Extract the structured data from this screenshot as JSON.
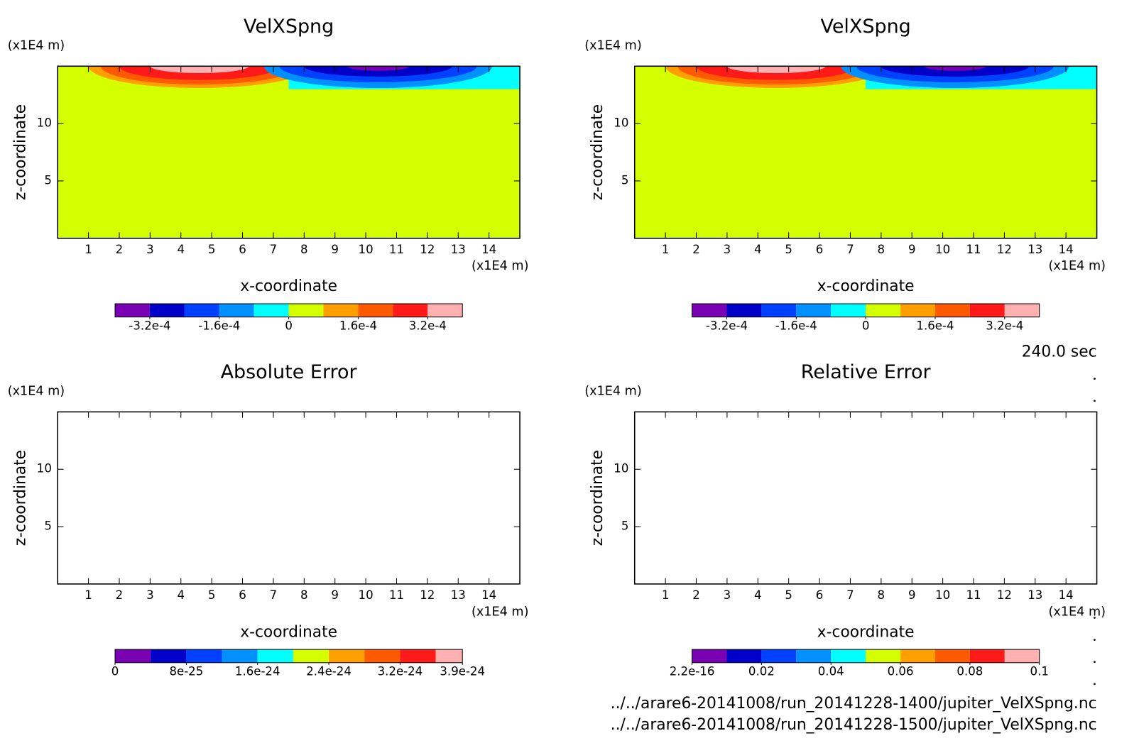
{
  "chart_data": [
    {
      "type": "contour",
      "title": "VelXSpng",
      "x_label": "x-coordinate",
      "y_label": "z-coordinate",
      "x_unit": "(x1E4 m)",
      "y_unit": "(x1E4 m)",
      "xlim": [
        0,
        15
      ],
      "ylim": [
        0,
        15
      ],
      "xticks": [
        1,
        2,
        3,
        4,
        5,
        6,
        7,
        8,
        9,
        10,
        11,
        12,
        13,
        14
      ],
      "yticks": [
        5,
        10
      ],
      "colorbar": {
        "colors": [
          "#7a00b4",
          "#0000c8",
          "#0040ff",
          "#0090ff",
          "#00ffff",
          "#d4ff00",
          "#ffa000",
          "#ff5a00",
          "#ff1a1a",
          "#ffb0b0"
        ],
        "levels": [
          -0.0004,
          -0.00032,
          -0.00024,
          -0.00016,
          -8e-05,
          0,
          8e-05,
          0.00016,
          0.00024,
          0.00032,
          0.0004
        ],
        "ticks": [
          {
            "value": -0.00032,
            "label": "-3.2e-4"
          },
          {
            "value": -0.00016,
            "label": "-1.6e-4"
          },
          0,
          {
            "value": 0.00016,
            "label": "1.6e-4"
          },
          {
            "value": 0.00032,
            "label": "3.2e-4"
          }
        ]
      }
    },
    {
      "type": "contour",
      "title": "VelXSpng",
      "x_label": "x-coordinate",
      "y_label": "z-coordinate",
      "x_unit": "(x1E4 m)",
      "y_unit": "(x1E4 m)",
      "xlim": [
        0,
        15
      ],
      "ylim": [
        0,
        15
      ],
      "xticks": [
        1,
        2,
        3,
        4,
        5,
        6,
        7,
        8,
        9,
        10,
        11,
        12,
        13,
        14
      ],
      "yticks": [
        5,
        10
      ],
      "colorbar": {
        "colors": [
          "#7a00b4",
          "#0000c8",
          "#0040ff",
          "#0090ff",
          "#00ffff",
          "#d4ff00",
          "#ffa000",
          "#ff5a00",
          "#ff1a1a",
          "#ffb0b0"
        ],
        "levels": [
          -0.0004,
          -0.00032,
          -0.00024,
          -0.00016,
          -8e-05,
          0,
          8e-05,
          0.00016,
          0.00024,
          0.00032,
          0.0004
        ],
        "ticks": [
          {
            "value": -0.00032,
            "label": "-3.2e-4"
          },
          {
            "value": -0.00016,
            "label": "-1.6e-4"
          },
          0,
          {
            "value": 0.00016,
            "label": "1.6e-4"
          },
          {
            "value": 0.00032,
            "label": "3.2e-4"
          }
        ]
      }
    },
    {
      "type": "contour",
      "title": "Absolute Error",
      "x_label": "x-coordinate",
      "y_label": "z-coordinate",
      "x_unit": "(x1E4 m)",
      "y_unit": "(x1E4 m)",
      "xlim": [
        0,
        15
      ],
      "ylim": [
        0,
        15
      ],
      "xticks": [
        1,
        2,
        3,
        4,
        5,
        6,
        7,
        8,
        9,
        10,
        11,
        12,
        13,
        14
      ],
      "yticks": [
        5,
        10
      ],
      "colorbar": {
        "colors": [
          "#7a00b4",
          "#0000c8",
          "#0040ff",
          "#0090ff",
          "#00ffff",
          "#d4ff00",
          "#ffa000",
          "#ff5a00",
          "#ff1a1a",
          "#ffb0b0"
        ],
        "levels": [
          0,
          4e-25,
          8e-25,
          1.2e-24,
          1.6e-24,
          2e-24,
          2.4e-24,
          2.8e-24,
          3.2e-24,
          3.6e-24,
          3.9e-24
        ],
        "ticks": [
          0,
          {
            "value": 8e-25,
            "label": "8e-25"
          },
          {
            "value": 1.6e-24,
            "label": "1.6e-24"
          },
          {
            "value": 2.4e-24,
            "label": "2.4e-24"
          },
          {
            "value": 3.2e-24,
            "label": "3.2e-24"
          },
          {
            "value": 3.9e-24,
            "label": "3.9e-24"
          }
        ]
      }
    },
    {
      "type": "contour",
      "title": "Relative Error",
      "x_label": "x-coordinate",
      "y_label": "z-coordinate",
      "x_unit": "(x1E4 m)",
      "y_unit": "(x1E4 m)",
      "xlim": [
        0,
        15
      ],
      "ylim": [
        0,
        15
      ],
      "xticks": [
        1,
        2,
        3,
        4,
        5,
        6,
        7,
        8,
        9,
        10,
        11,
        12,
        13,
        14
      ],
      "yticks": [
        5,
        10
      ],
      "colorbar": {
        "colors": [
          "#7a00b4",
          "#0000c8",
          "#0040ff",
          "#0090ff",
          "#00ffff",
          "#d4ff00",
          "#ffa000",
          "#ff5a00",
          "#ff1a1a",
          "#ffb0b0"
        ],
        "levels": [
          2.2e-16,
          0.01,
          0.02,
          0.03,
          0.04,
          0.05,
          0.06,
          0.07,
          0.08,
          0.09,
          0.1
        ],
        "ticks": [
          {
            "value": 2.2e-16,
            "label": "2.2e-16"
          },
          0.02,
          0.04,
          0.06,
          0.08,
          0.1
        ]
      }
    }
  ],
  "annotations": {
    "time": "240.0 sec",
    "files": [
      "../../arare6-20141008/run_20141228-1400/jupiter_VelXSpng.nc",
      "../../arare6-20141008/run_20141228-1500/jupiter_VelXSpng.nc"
    ]
  }
}
